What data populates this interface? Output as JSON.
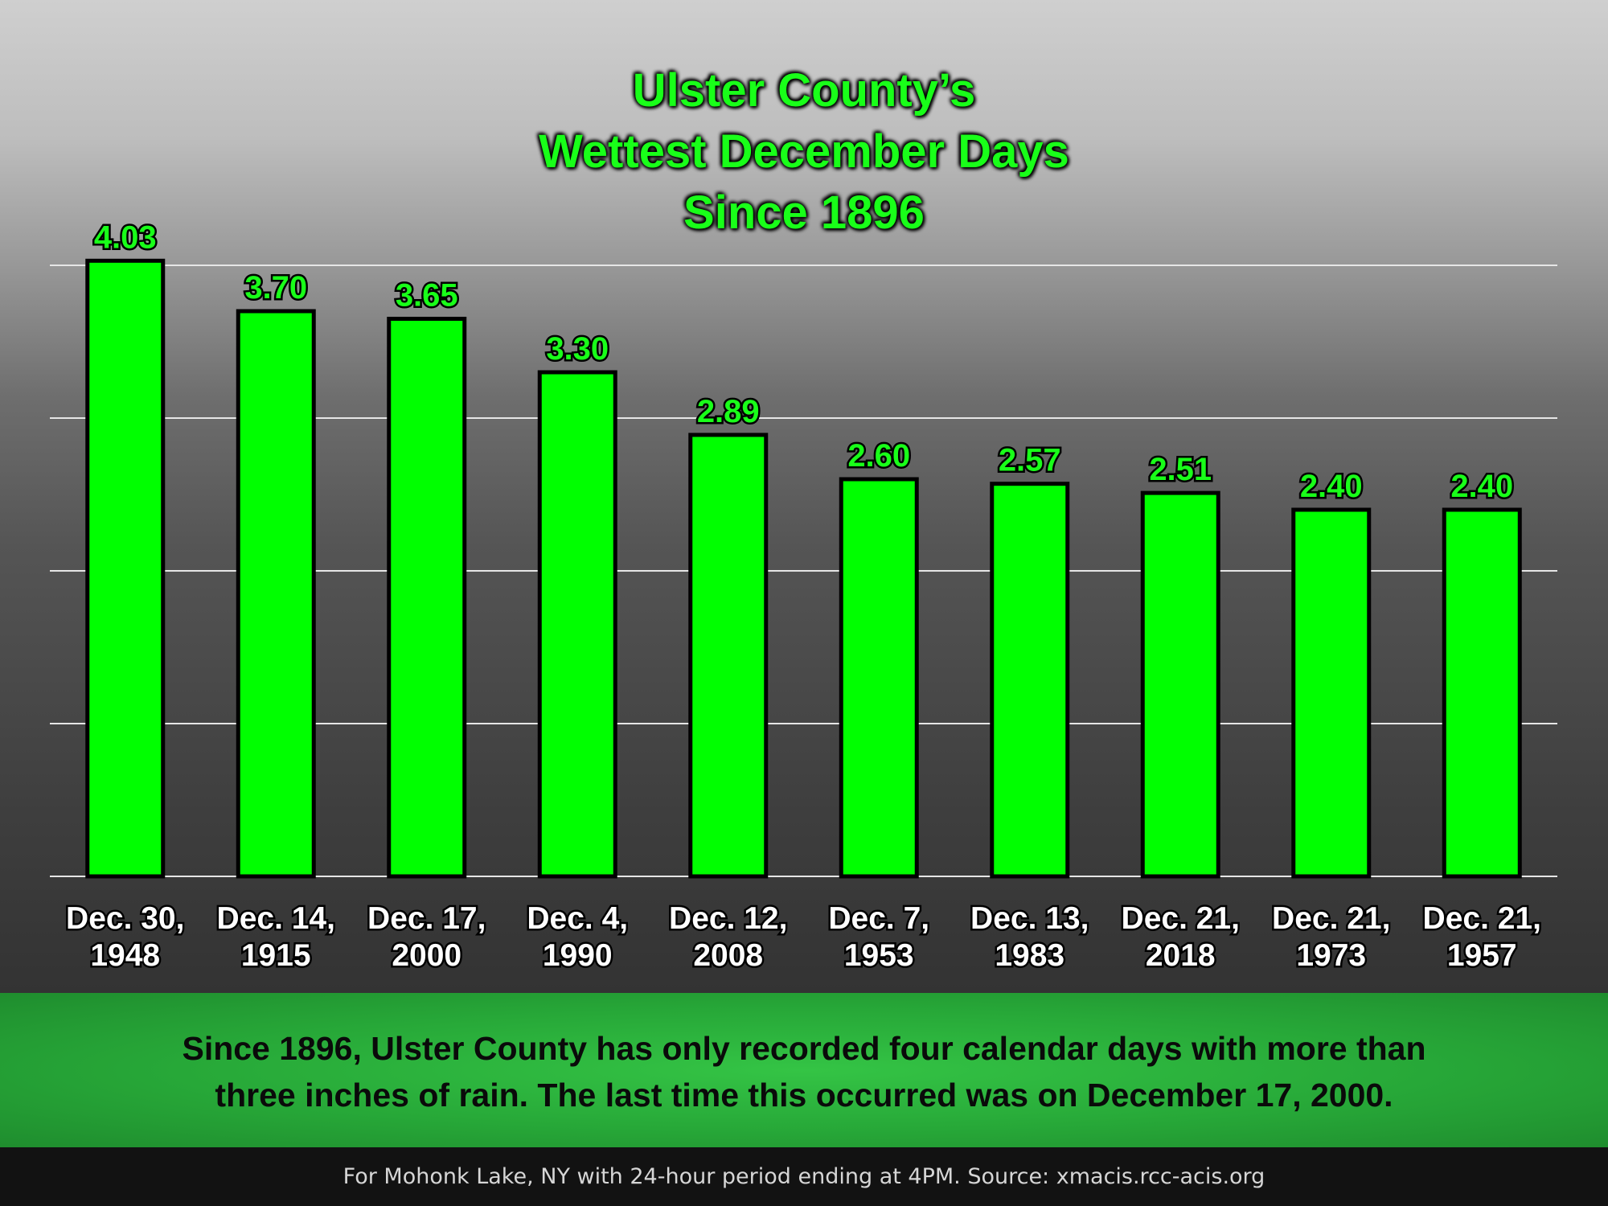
{
  "chart_data": {
    "type": "bar",
    "title": [
      "Ulster County’s",
      "Wettest December Days",
      "Since 1896"
    ],
    "categories": [
      [
        "Dec. 30,",
        "1948"
      ],
      [
        "Dec. 14,",
        "1915"
      ],
      [
        "Dec. 17,",
        "2000"
      ],
      [
        "Dec. 4,",
        "1990"
      ],
      [
        "Dec. 12,",
        "2008"
      ],
      [
        "Dec. 7,",
        "1953"
      ],
      [
        "Dec. 13,",
        "1983"
      ],
      [
        "Dec. 21,",
        "2018"
      ],
      [
        "Dec. 21,",
        "1973"
      ],
      [
        "Dec. 21,",
        "1957"
      ]
    ],
    "values": [
      4.03,
      3.7,
      3.65,
      3.3,
      2.89,
      2.6,
      2.57,
      2.51,
      2.4,
      2.4
    ],
    "value_labels": [
      "4.03",
      "3.70",
      "3.65",
      "3.30",
      "2.89",
      "2.60",
      "2.57",
      "2.51",
      "2.40",
      "2.40"
    ],
    "ylim": [
      0,
      4
    ],
    "y_gridlines": [
      1,
      2,
      3,
      4
    ],
    "grid": true,
    "xlabel": "",
    "ylabel": "",
    "colors": {
      "bar": "#00ff00",
      "bar_outline": "#000000",
      "label": "#19ff19",
      "tick_label": "#ffffff"
    }
  },
  "footer": {
    "note_line1": "Since 1896, Ulster County has only recorded four calendar days with more than",
    "note_line2": "three inches of rain. The last time this occurred was on December 17, 2000.",
    "source": "For Mohonk Lake, NY with 24-hour period ending at 4PM. Source: xmacis.rcc-acis.org"
  }
}
